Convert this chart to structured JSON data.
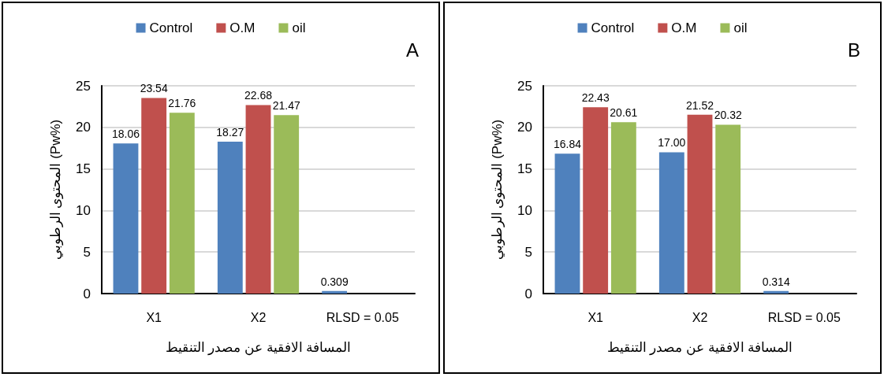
{
  "chart_data": [
    {
      "type": "bar",
      "title": "A",
      "categories": [
        "X1",
        "X2",
        "RLSD = 0.05"
      ],
      "xlabel": "المسافة الافقية عن مصدر التنقيط",
      "ylabel": "المحتوى الرطوبي (Pw%)",
      "ylim": [
        0,
        25
      ],
      "yticks": [
        0,
        5,
        10,
        15,
        20,
        25
      ],
      "grid": "y",
      "legend": "top",
      "data_labels": true,
      "series": [
        {
          "name": "Control",
          "color": "#4f81bd",
          "values": [
            18.06,
            18.27,
            0.309
          ]
        },
        {
          "name": "O.M",
          "color": "#c0504d",
          "values": [
            23.54,
            22.68,
            null
          ]
        },
        {
          "name": "oil",
          "color": "#9bbb59",
          "values": [
            21.76,
            21.47,
            null
          ]
        }
      ]
    },
    {
      "type": "bar",
      "title": "B",
      "categories": [
        "X1",
        "X2",
        "RLSD = 0.05"
      ],
      "xlabel": "المسافة الافقية عن مصدر التنقيط",
      "ylabel": "المحتوى الرطوبي (Pw%)",
      "ylim": [
        0,
        25
      ],
      "yticks": [
        0,
        5,
        10,
        15,
        20,
        25
      ],
      "grid": "y",
      "legend": "top",
      "series": [
        {
          "name": "Control",
          "color": "#4f81bd",
          "values": [
            16.84,
            17.0,
            0.314
          ],
          "value_labels": [
            "16.84",
            "17.00",
            "0.314"
          ]
        },
        {
          "name": "O.M",
          "color": "#c0504d",
          "values": [
            22.43,
            21.52,
            null
          ],
          "value_labels": [
            "22.43",
            "21.52",
            null
          ]
        },
        {
          "name": "oil",
          "color": "#9bbb59",
          "values": [
            20.61,
            20.32,
            null
          ],
          "value_labels": [
            "20.61",
            "20.32",
            null
          ]
        }
      ]
    }
  ]
}
